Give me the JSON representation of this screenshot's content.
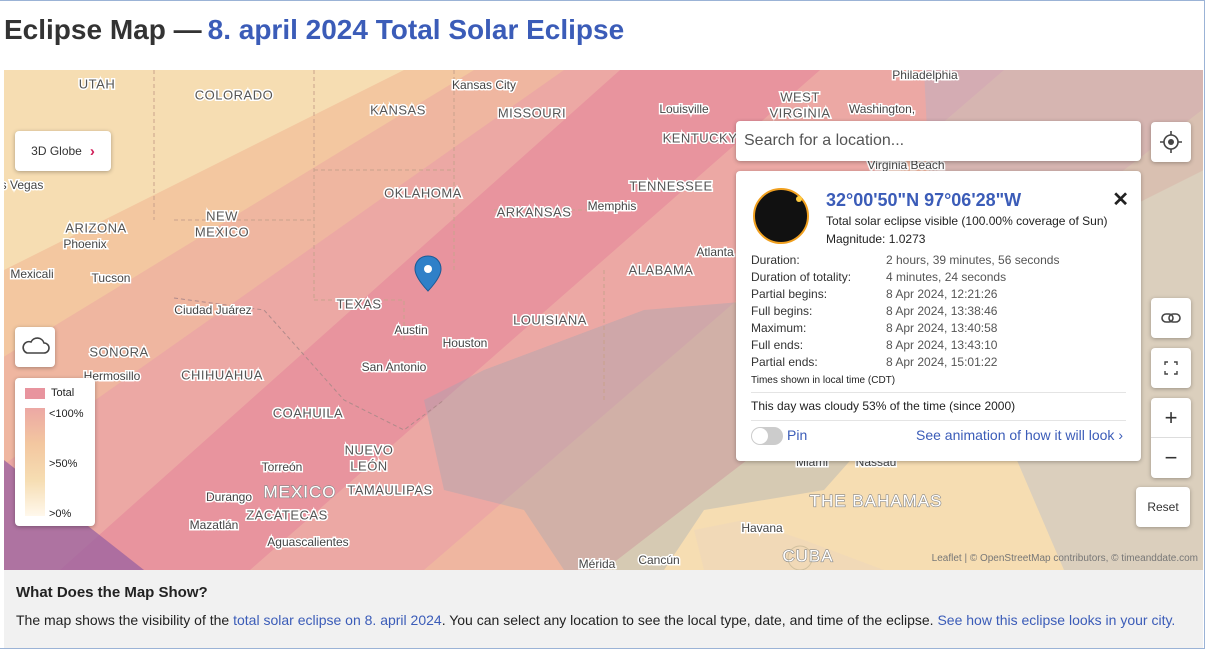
{
  "header": {
    "title": "Eclipse Map —",
    "link": "8. april 2024 Total Solar Eclipse"
  },
  "map": {
    "labels": [
      "UTAH",
      "COLORADO",
      "KANSAS",
      "Kansas City",
      "MISSOURI",
      "Philadelphia",
      "WEST",
      "VIRGINIA",
      "Washington,",
      "Louisville",
      "KENTUCKY",
      "Virginia Beach",
      "s Vegas",
      "OKLAHOMA",
      "TENNESSEE",
      "ARKANSAS",
      "Memphis",
      "ARIZONA",
      "Phoenix",
      "NEW",
      "MEXICO",
      "Atlanta",
      "ALABAMA",
      "Mexicali",
      "Tucson",
      "TEXAS",
      "Ciudad Juárez",
      "Austin",
      "LOUISIANA",
      "Houston",
      "SONORA",
      "Hermosillo",
      "CHIHUAHUA",
      "San Antonio",
      "COAHUILA",
      "NUEVO",
      "LEÓN",
      "Torreón",
      "TAMAULIPAS",
      "MEXICO",
      "Durango",
      "ZACATECAS",
      "Mazatlán",
      "Aguascalientes",
      "Mérida",
      "Cancún",
      "Havana",
      "CUBA",
      "THE BAHAMAS",
      "Miami",
      "Nassau"
    ],
    "attribution": "Leaflet | © OpenStreetMap contributors, © timeanddate.com"
  },
  "controls": {
    "globe": "3D Globe",
    "search_placeholder": "Search for a location...",
    "zoom_in": "+",
    "zoom_out": "−",
    "reset": "Reset"
  },
  "legend": {
    "title": "Total",
    "levels": [
      "<100%",
      ">50%",
      ">0%"
    ]
  },
  "popup": {
    "coordinates": "32°00'50\"N 97°06'28\"W",
    "visibility": "Total solar eclipse visible (100.00% coverage of Sun)",
    "magnitude": "Magnitude: 1.0273",
    "rows": [
      [
        "Duration:",
        "2 hours, 39 minutes, 56 seconds"
      ],
      [
        "Duration of totality:",
        "4 minutes, 24 seconds"
      ],
      [
        "Partial begins:",
        "8 Apr 2024, 12:21:26"
      ],
      [
        "Full begins:",
        "8 Apr 2024, 13:38:46"
      ],
      [
        "Maximum:",
        "8 Apr 2024, 13:40:58"
      ],
      [
        "Full ends:",
        "8 Apr 2024, 13:43:10"
      ],
      [
        "Partial ends:",
        "8 Apr 2024, 15:01:22"
      ]
    ],
    "timezone_note": "Times shown in local time (CDT)",
    "cloud_note": "This day was cloudy 53% of the time (since 2000)",
    "pin": "Pin",
    "animation_link": "See animation of how it will look ›"
  },
  "footer": {
    "heading": "What Does the Map Show?",
    "parts": [
      "The map shows the visibility of the ",
      "total solar eclipse on 8. april 2024",
      ". You can select any location to see the local type, date, and time of the eclipse. ",
      "See how this eclipse looks in your city."
    ]
  }
}
